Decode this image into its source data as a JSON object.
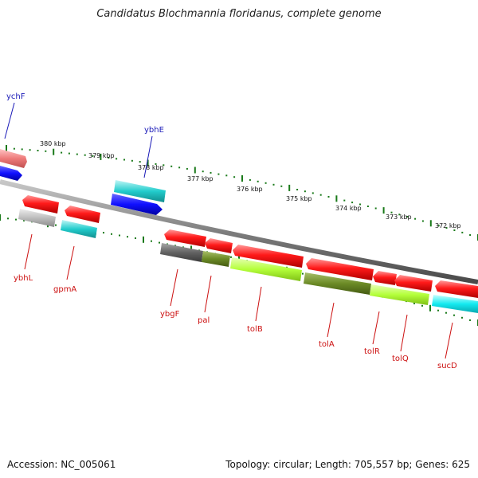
{
  "title": "Candidatus Blochmannia floridanus, complete genome",
  "accession_label": "Accession:",
  "accession": "NC_005061",
  "topology_label": "Topology:",
  "topology": "circular",
  "length_label": "Length:",
  "length": "705,557 bp",
  "genes_label": "Genes:",
  "genes": "625",
  "colors": {
    "backbone": "#8a8a8a",
    "tick": "#1a7a1a",
    "forward_label": "#1a1ab8",
    "reverse_label": "#cc1010"
  },
  "kbp_ticks": [
    "380 kbp",
    "379 kbp",
    "378 kbp",
    "377 kbp",
    "376 kbp",
    "375 kbp",
    "374 kbp",
    "373 kbp",
    "372 kbp"
  ],
  "forward_labels": [
    "ychF",
    "ybhE"
  ],
  "reverse_labels": [
    "ybhL",
    "gpmA",
    "ybgF",
    "pal",
    "tolB",
    "tolA",
    "tolR",
    "tolQ",
    "sucD"
  ]
}
